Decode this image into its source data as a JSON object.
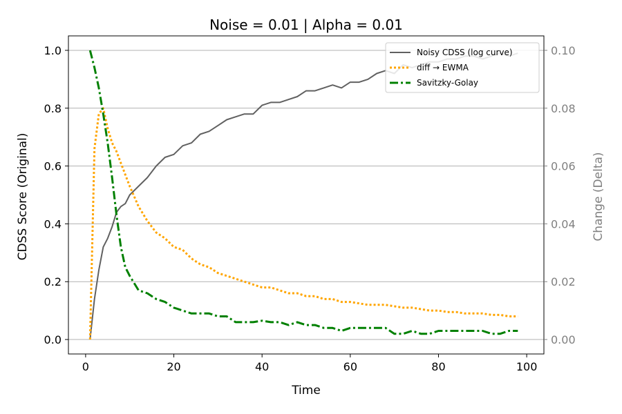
{
  "chart_data": {
    "type": "line",
    "title": "Noise = 0.01 | Alpha = 0.01",
    "xlabel": "Time",
    "ylabel_left": "CDSS Score (Original)",
    "ylabel_right": "Change (Delta)",
    "xlim": [
      -3.9,
      103.9
    ],
    "ylim_left": [
      -0.05,
      1.05
    ],
    "ylim_right": [
      -0.005,
      0.105
    ],
    "xticks": [
      "0",
      "20",
      "40",
      "60",
      "80",
      "100"
    ],
    "xtick_values": [
      0,
      20,
      40,
      60,
      80,
      100
    ],
    "yticks_left": [
      "0.0",
      "0.2",
      "0.4",
      "0.6",
      "0.8",
      "1.0"
    ],
    "ytick_values_left": [
      0.0,
      0.2,
      0.4,
      0.6,
      0.8,
      1.0
    ],
    "yticks_right": [
      "0.00",
      "0.02",
      "0.04",
      "0.06",
      "0.08",
      "0.10"
    ],
    "ytick_values_right": [
      0.0,
      0.02,
      0.04,
      0.06,
      0.08,
      0.1
    ],
    "grid": "horizontal (right axis)",
    "legend_position": "top-right",
    "colors": {
      "noisy": "#606060",
      "ewma": "#ffa500",
      "savgol": "#008000",
      "right_axis": "#808080",
      "grid": "#b0b0b0"
    },
    "series": [
      {
        "name": "Noisy CDSS (log curve)",
        "axis": "left",
        "style": "solid",
        "x": [
          1,
          2,
          3,
          4,
          5,
          6,
          7,
          8,
          9,
          10,
          12,
          14,
          16,
          18,
          20,
          22,
          24,
          26,
          28,
          30,
          32,
          34,
          36,
          38,
          40,
          42,
          44,
          46,
          48,
          50,
          52,
          54,
          56,
          58,
          60,
          62,
          64,
          66,
          68,
          70,
          72,
          74,
          76,
          78,
          80,
          82,
          84,
          86,
          88,
          90,
          92,
          94,
          96,
          98
        ],
        "values": [
          0.0,
          0.14,
          0.24,
          0.32,
          0.35,
          0.39,
          0.44,
          0.46,
          0.47,
          0.5,
          0.53,
          0.56,
          0.6,
          0.63,
          0.64,
          0.67,
          0.68,
          0.71,
          0.72,
          0.74,
          0.76,
          0.77,
          0.78,
          0.78,
          0.81,
          0.82,
          0.82,
          0.83,
          0.84,
          0.86,
          0.86,
          0.87,
          0.88,
          0.87,
          0.89,
          0.89,
          0.9,
          0.92,
          0.93,
          0.92,
          0.95,
          0.94,
          0.95,
          0.96,
          0.96,
          0.97,
          0.97,
          0.98,
          0.98,
          0.97,
          0.98,
          0.99,
          0.98,
          0.99
        ]
      },
      {
        "name": "diff → EWMA",
        "axis": "right",
        "style": "dotted",
        "x": [
          1,
          2,
          3,
          4,
          5,
          6,
          7,
          8,
          10,
          12,
          14,
          16,
          18,
          20,
          22,
          24,
          26,
          28,
          30,
          32,
          34,
          36,
          38,
          40,
          42,
          44,
          46,
          48,
          50,
          52,
          54,
          56,
          58,
          60,
          62,
          64,
          66,
          68,
          70,
          72,
          74,
          76,
          78,
          80,
          82,
          84,
          86,
          88,
          90,
          92,
          94,
          96,
          98
        ],
        "values": [
          0.0,
          0.066,
          0.078,
          0.08,
          0.073,
          0.068,
          0.065,
          0.061,
          0.053,
          0.046,
          0.041,
          0.037,
          0.035,
          0.032,
          0.031,
          0.028,
          0.026,
          0.025,
          0.023,
          0.022,
          0.021,
          0.02,
          0.019,
          0.018,
          0.018,
          0.017,
          0.016,
          0.016,
          0.015,
          0.015,
          0.014,
          0.014,
          0.013,
          0.013,
          0.0125,
          0.012,
          0.012,
          0.012,
          0.0115,
          0.011,
          0.011,
          0.0105,
          0.01,
          0.01,
          0.0095,
          0.0095,
          0.009,
          0.009,
          0.009,
          0.0085,
          0.0085,
          0.008,
          0.008
        ]
      },
      {
        "name": "Savitzky-Golay",
        "axis": "right",
        "style": "dashdot",
        "x": [
          1,
          2,
          3,
          4,
          5,
          6,
          7,
          8,
          9,
          10,
          12,
          14,
          16,
          18,
          20,
          22,
          24,
          26,
          28,
          30,
          32,
          34,
          36,
          38,
          40,
          42,
          44,
          46,
          48,
          50,
          52,
          54,
          56,
          58,
          60,
          62,
          64,
          66,
          68,
          70,
          72,
          74,
          76,
          78,
          80,
          82,
          84,
          86,
          88,
          90,
          92,
          94,
          96,
          98
        ],
        "values": [
          0.1,
          0.094,
          0.087,
          0.078,
          0.068,
          0.056,
          0.043,
          0.032,
          0.025,
          0.022,
          0.017,
          0.016,
          0.014,
          0.013,
          0.011,
          0.01,
          0.009,
          0.009,
          0.009,
          0.008,
          0.008,
          0.006,
          0.006,
          0.006,
          0.0065,
          0.006,
          0.006,
          0.005,
          0.006,
          0.005,
          0.005,
          0.004,
          0.004,
          0.003,
          0.004,
          0.004,
          0.004,
          0.004,
          0.004,
          0.002,
          0.002,
          0.003,
          0.002,
          0.002,
          0.003,
          0.003,
          0.003,
          0.003,
          0.003,
          0.003,
          0.002,
          0.002,
          0.003,
          0.003
        ]
      }
    ]
  }
}
